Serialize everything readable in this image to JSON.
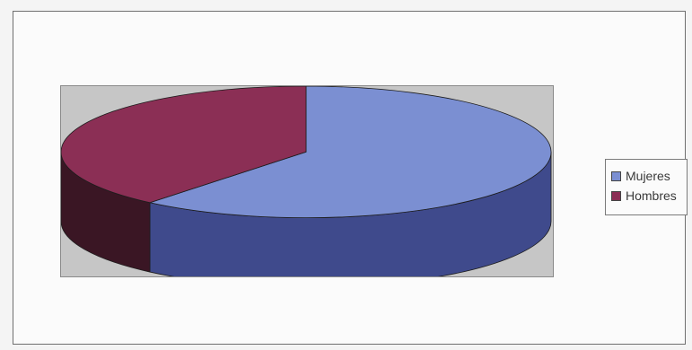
{
  "chart_data": {
    "type": "pie",
    "title": "",
    "legend_position": "right",
    "series": [
      {
        "name": "Mujeres",
        "value": 61,
        "color": "#7b8fd2",
        "side_color": "#3f4a8c"
      },
      {
        "name": "Hombres",
        "value": 39,
        "color": "#8b2f55",
        "side_color": "#3a1624"
      }
    ]
  }
}
